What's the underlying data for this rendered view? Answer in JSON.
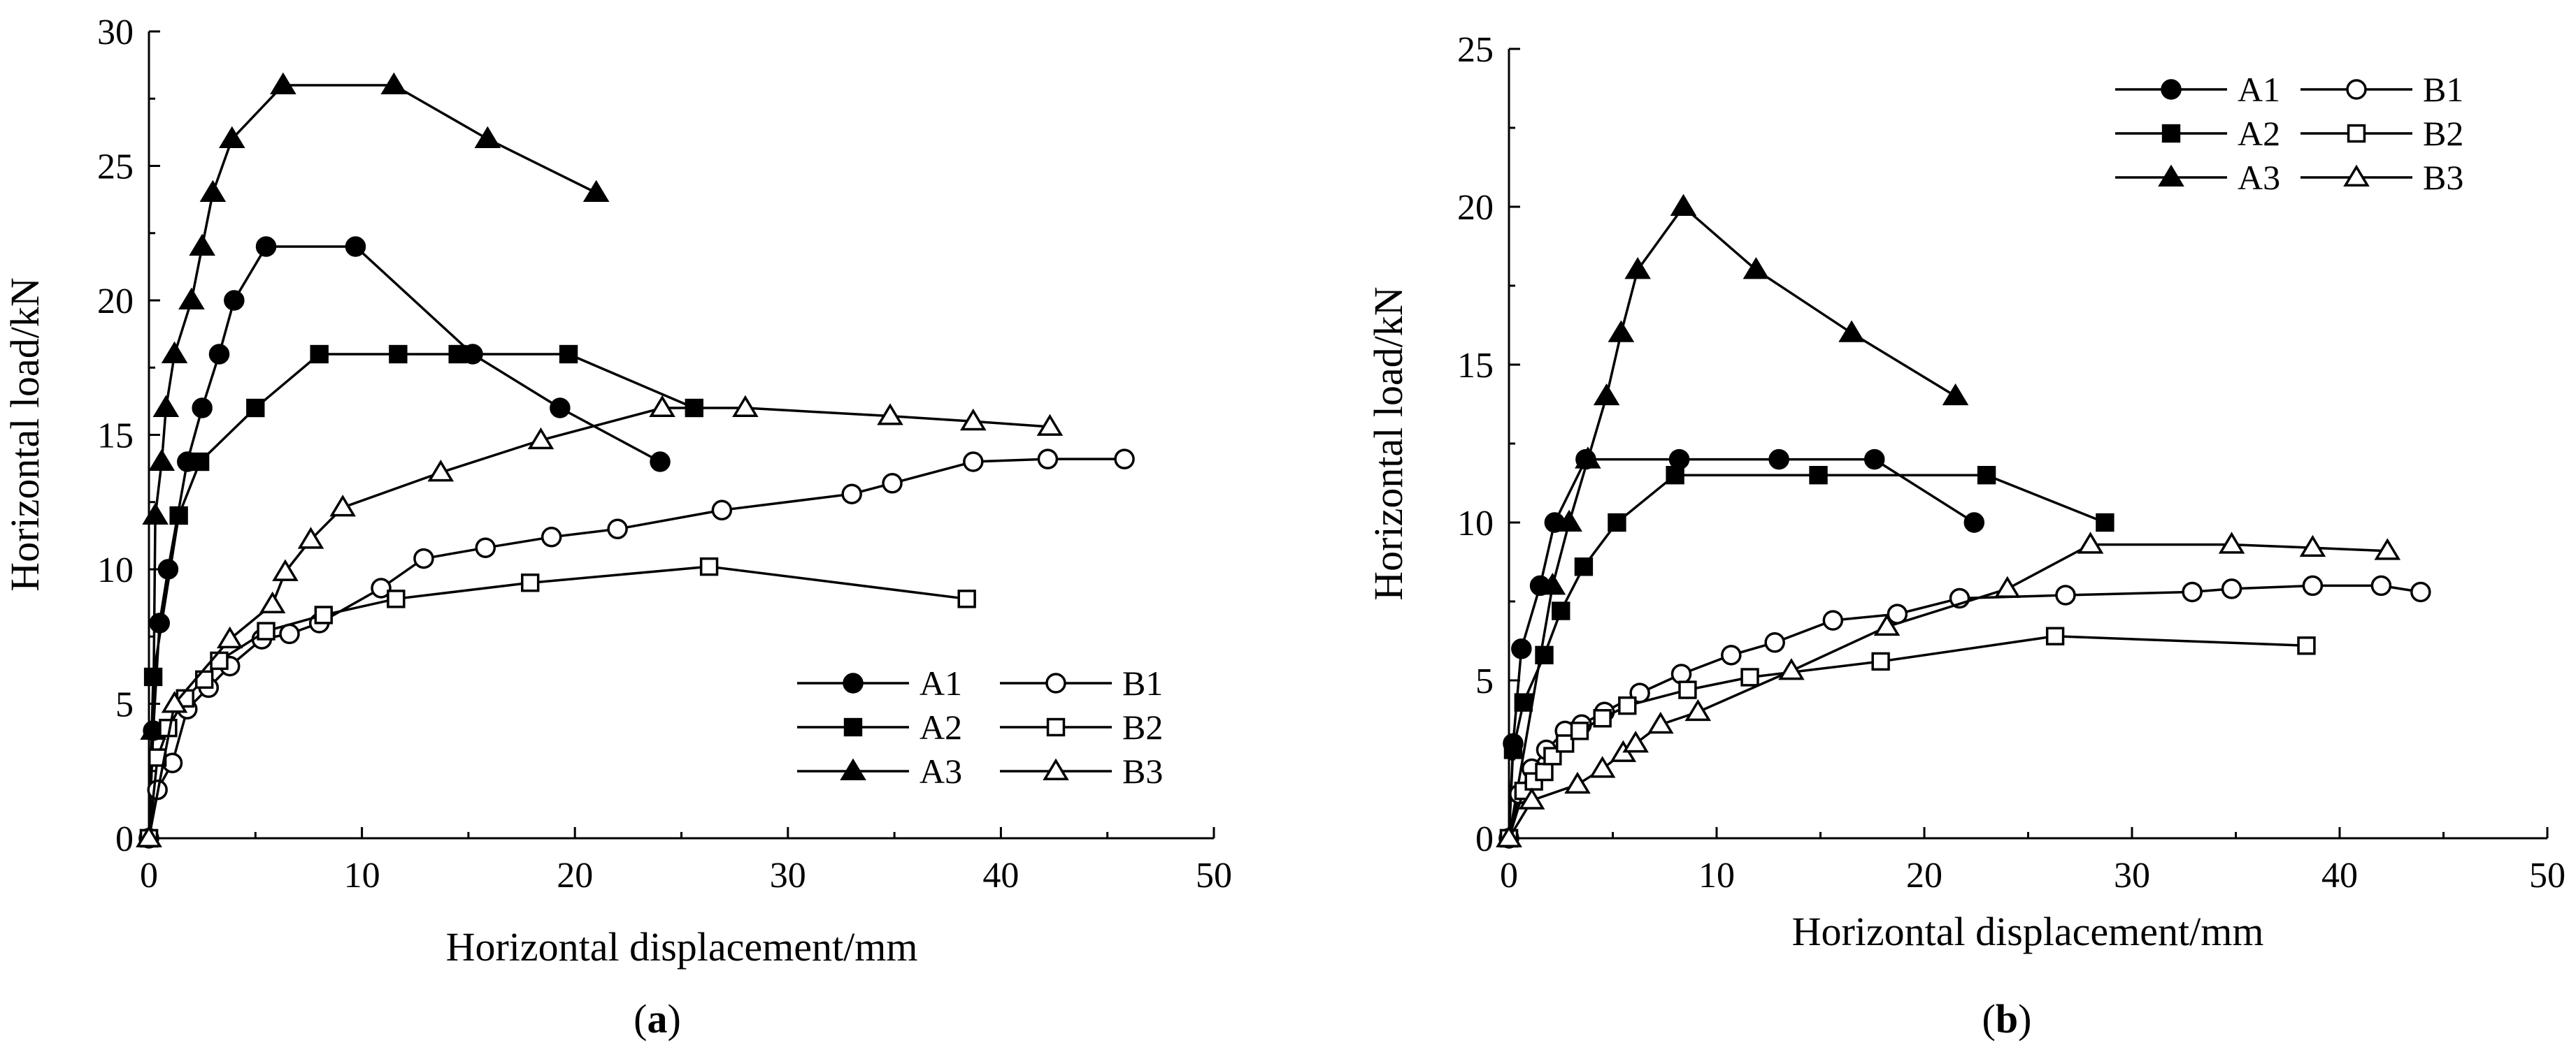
{
  "chart_data": [
    {
      "type": "line",
      "panel_label": "a",
      "xlabel": "Horizontal displacement/mm",
      "ylabel": "Horizontal load/kN",
      "xlim": [
        0,
        50
      ],
      "ylim": [
        0,
        30
      ],
      "xticks": [
        0,
        10,
        20,
        30,
        40,
        50
      ],
      "yticks": [
        0,
        5,
        10,
        15,
        20,
        25,
        30
      ],
      "legend_position": "bottom-right",
      "series": [
        {
          "name": "A1",
          "marker": "circle",
          "fill": "filled",
          "x": [
            0,
            0.2,
            0.5,
            0.9,
            1.8,
            2.5,
            3.3,
            4,
            5.5,
            9.7,
            15.2,
            19.3,
            24
          ],
          "y": [
            0,
            4,
            8,
            10,
            14,
            16,
            18,
            20,
            22,
            22,
            18,
            16,
            14
          ]
        },
        {
          "name": "A2",
          "marker": "square",
          "fill": "filled",
          "x": [
            0,
            0.2,
            1.4,
            2.4,
            5,
            8,
            11.7,
            14.5,
            19.7,
            25.6
          ],
          "y": [
            0,
            6,
            12,
            14,
            16,
            18,
            18,
            18,
            18,
            16
          ]
        },
        {
          "name": "A3",
          "marker": "triangle",
          "fill": "filled",
          "x": [
            0,
            0.2,
            0.3,
            0.6,
            0.8,
            1.2,
            2,
            2.5,
            3,
            3.9,
            6.3,
            11.5,
            15.9,
            21
          ],
          "y": [
            0,
            4,
            12,
            14,
            16,
            18,
            20,
            22,
            24,
            26,
            28,
            28,
            26,
            24
          ]
        },
        {
          "name": "B1",
          "marker": "circle",
          "fill": "open",
          "x": [
            0,
            0.4,
            1.1,
            1.8,
            2.8,
            3.8,
            5.3,
            6.6,
            8,
            10.9,
            12.9,
            15.8,
            18.9,
            22,
            26.9,
            33,
            34.9,
            38.7,
            42.2,
            45.8
          ],
          "y": [
            0,
            1.8,
            2.8,
            4.8,
            5.6,
            6.4,
            7.4,
            7.6,
            8,
            9.3,
            10.4,
            10.8,
            11.2,
            11.5,
            12.2,
            12.8,
            13.2,
            14,
            14.1,
            14.1
          ],
          "lead_in": [
            [
              0,
              0
            ],
            [
              0.1,
              1.3
            ],
            [
              0.4,
              1.8
            ]
          ]
        },
        {
          "name": "B2",
          "marker": "square",
          "fill": "open",
          "x": [
            0,
            0.4,
            0.9,
            1.7,
            2.6,
            3.3,
            5.5,
            8.2,
            11.6,
            17.9,
            26.3,
            38.4
          ],
          "y": [
            0,
            3,
            4.1,
            5.2,
            5.9,
            6.6,
            7.7,
            8.3,
            8.9,
            9.5,
            10.1,
            8.9
          ]
        },
        {
          "name": "B3",
          "marker": "triangle",
          "fill": "open",
          "x": [
            0,
            1.2,
            3.8,
            5.8,
            6.4,
            7.6,
            9.1,
            13.7,
            18.4,
            24.1,
            28,
            34.8,
            38.7,
            42.3
          ],
          "y": [
            0,
            5,
            7.4,
            8.7,
            9.9,
            11.1,
            12.3,
            13.6,
            14.8,
            16,
            16,
            15.7,
            15.5,
            15.3
          ],
          "lead_in": [
            [
              0,
              0
            ],
            [
              0.5,
              3.2
            ],
            [
              1.2,
              5
            ]
          ]
        }
      ]
    },
    {
      "type": "line",
      "panel_label": "b",
      "xlabel": "Horizontal displacement/mm",
      "ylabel": "Horizontal load/kN",
      "xlim": [
        0,
        50
      ],
      "ylim": [
        0,
        25
      ],
      "xticks": [
        0,
        10,
        20,
        30,
        40,
        50
      ],
      "yticks": [
        0,
        5,
        10,
        15,
        20,
        25
      ],
      "legend_position": "top-right",
      "series": [
        {
          "name": "A1",
          "marker": "circle",
          "fill": "filled",
          "x": [
            0,
            0.2,
            0.6,
            1.5,
            2.2,
            3.7,
            8.2,
            13,
            17.6,
            22.4
          ],
          "y": [
            0,
            3,
            6,
            8,
            10,
            12,
            12,
            12,
            12,
            10
          ]
        },
        {
          "name": "A2",
          "marker": "square",
          "fill": "filled",
          "x": [
            0,
            0.2,
            0.7,
            1.7,
            2.5,
            3.6,
            5.2,
            8,
            14.9,
            23,
            28.7
          ],
          "y": [
            0,
            2.8,
            4.3,
            5.8,
            7.2,
            8.6,
            10,
            11.5,
            11.5,
            11.5,
            10
          ]
        },
        {
          "name": "A3",
          "marker": "triangle",
          "fill": "filled",
          "x": [
            0,
            2.1,
            2.9,
            3.8,
            4.7,
            5.4,
            6.2,
            8.4,
            11.9,
            16.5,
            21.5
          ],
          "y": [
            0,
            8,
            10,
            12,
            14,
            16,
            18,
            20,
            18,
            16,
            14
          ]
        },
        {
          "name": "B1",
          "marker": "circle",
          "fill": "open",
          "x": [
            0,
            0.5,
            1.1,
            1.8,
            2.7,
            3.5,
            4.6,
            6.3,
            8.3,
            10.7,
            12.8,
            15.6,
            18.7,
            21.7,
            26.8,
            32.9,
            34.8,
            38.7,
            42,
            43.9
          ],
          "y": [
            0,
            1.4,
            2.2,
            2.8,
            3.4,
            3.6,
            4.0,
            4.6,
            5.2,
            5.8,
            6.2,
            6.9,
            7.1,
            7.6,
            7.7,
            7.8,
            7.9,
            8,
            8,
            7.8
          ]
        },
        {
          "name": "B2",
          "marker": "square",
          "fill": "open",
          "x": [
            0,
            0.7,
            1.2,
            1.7,
            2.1,
            2.7,
            3.4,
            4.5,
            5.7,
            8.6,
            11.6,
            17.9,
            26.3,
            38.4
          ],
          "y": [
            0,
            1.5,
            1.8,
            2.1,
            2.6,
            3,
            3.4,
            3.8,
            4.2,
            4.7,
            5.1,
            5.6,
            6.4,
            6.1
          ]
        },
        {
          "name": "B3",
          "marker": "triangle",
          "fill": "open",
          "x": [
            0,
            1.1,
            3.3,
            4.5,
            5.5,
            6.1,
            7.3,
            9.1,
            13.6,
            18.2,
            24,
            28,
            34.8,
            38.7,
            42.3
          ],
          "y": [
            0,
            1.2,
            1.7,
            2.2,
            2.7,
            3.0,
            3.6,
            4,
            5.3,
            6.7,
            7.9,
            9.3,
            9.3,
            9.2,
            9.1
          ]
        }
      ]
    }
  ]
}
